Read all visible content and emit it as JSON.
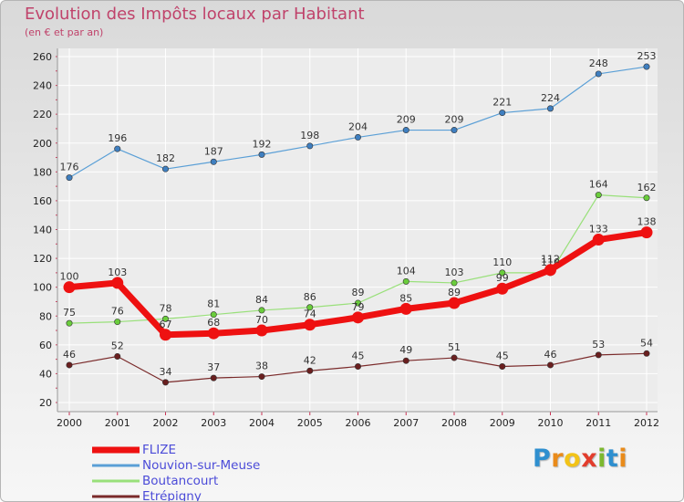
{
  "title": "Evolution des Impôts locaux par Habitant",
  "subtitle": "(en € et par an)",
  "logo": "Proxiti",
  "chart_data": {
    "type": "line",
    "title": "Evolution des Impôts locaux par Habitant",
    "subtitle": "(en € et par an)",
    "x": [
      "2000",
      "2001",
      "2002",
      "2003",
      "2004",
      "2005",
      "2006",
      "2007",
      "2008",
      "2009",
      "2010",
      "2011",
      "2012"
    ],
    "ylim": [
      20,
      260
    ],
    "yticks": [
      20,
      40,
      60,
      80,
      100,
      120,
      140,
      160,
      180,
      200,
      220,
      240,
      260
    ],
    "grid": true,
    "legend": "bottom-left",
    "series": [
      {
        "name": "Nouvion-sur-Meuse",
        "color": "#5a9fd6",
        "marker": "#3f7fc0",
        "width": 1.2,
        "values": [
          176,
          196,
          182,
          187,
          192,
          198,
          204,
          209,
          209,
          221,
          224,
          248,
          253
        ]
      },
      {
        "name": "Boutancourt",
        "color": "#99e07a",
        "marker": "#6acd3c",
        "width": 1.2,
        "values": [
          75,
          76,
          78,
          81,
          84,
          86,
          89,
          104,
          103,
          110,
          110,
          164,
          162
        ]
      },
      {
        "name": "Etrépigny",
        "color": "#7a2a2a",
        "marker": "#6a1f1f",
        "width": 1.2,
        "values": [
          46,
          52,
          34,
          37,
          38,
          42,
          45,
          49,
          51,
          45,
          46,
          53,
          54
        ]
      },
      {
        "name": "FLIZE",
        "color": "#ee1111",
        "marker": "#ee1111",
        "width": 7,
        "values": [
          100,
          103,
          67,
          68,
          70,
          74,
          79,
          85,
          89,
          99,
          112,
          133,
          138
        ]
      }
    ],
    "legend_order": [
      "FLIZE",
      "Nouvion-sur-Meuse",
      "Boutancourt",
      "Etrépigny"
    ]
  }
}
